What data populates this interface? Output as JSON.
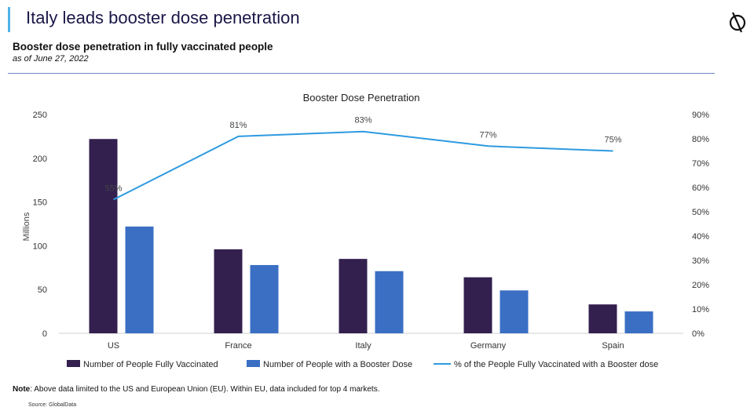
{
  "header": {
    "title": "Italy leads booster dose penetration",
    "subtitle": "Booster dose penetration in fully vaccinated people",
    "as_of": "as of June 27, 2022"
  },
  "footer": {
    "note_label": "Note",
    "note_text": ": Above data limited to the US and European Union (EU). Within EU, data included for top 4 markets.",
    "source": "Source: GlobalData"
  },
  "colors": {
    "fully_vaccinated": "#33204f",
    "booster": "#3a6fc4",
    "line": "#2e9ae0",
    "title": "#1a1747",
    "accent": "#4fb3e8"
  },
  "chart_data": {
    "type": "bar",
    "title": "Booster Dose Penetration",
    "categories": [
      "US",
      "France",
      "Italy",
      "Germany",
      "Spain"
    ],
    "ylabel": "Millions",
    "ylim": [
      0,
      250
    ],
    "yticks": [
      "0",
      "50",
      "100",
      "150",
      "200",
      "250"
    ],
    "y2lim": [
      0,
      90
    ],
    "y2ticks": [
      "0%",
      "10%",
      "20%",
      "30%",
      "40%",
      "50%",
      "60%",
      "70%",
      "80%",
      "90%"
    ],
    "series": [
      {
        "name": "Number of People Fully Vaccinated",
        "type": "bar",
        "axis": "left",
        "values": [
          222,
          96,
          85,
          64,
          33
        ]
      },
      {
        "name": "Number of People with a Booster Dose",
        "type": "bar",
        "axis": "left",
        "values": [
          122,
          78,
          71,
          49,
          25
        ]
      },
      {
        "name": "% of the People Fully Vaccinated with a Booster dose",
        "type": "line",
        "axis": "right",
        "values": [
          55,
          81,
          83,
          77,
          75
        ],
        "labels": [
          "55%",
          "81%",
          "83%",
          "77%",
          "75%"
        ]
      }
    ],
    "grid": false,
    "legend": "bottom"
  }
}
